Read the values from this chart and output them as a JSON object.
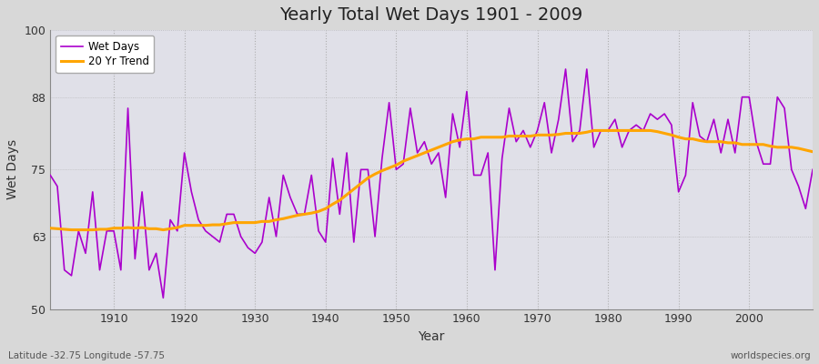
{
  "title": "Yearly Total Wet Days 1901 - 2009",
  "xlabel": "Year",
  "ylabel": "Wet Days",
  "subtitle_lat": "Latitude -32.75 Longitude -57.75",
  "watermark": "worldspecies.org",
  "ylim": [
    50,
    100
  ],
  "yticks": [
    50,
    63,
    75,
    88,
    100
  ],
  "xlim": [
    1901,
    2009
  ],
  "xticks": [
    1910,
    1920,
    1930,
    1940,
    1950,
    1960,
    1970,
    1980,
    1990,
    2000
  ],
  "line_color": "#AA00CC",
  "trend_color": "#FFA500",
  "fig_bg_color": "#D8D8D8",
  "plot_bg_color": "#E0E0E8",
  "years": [
    1901,
    1902,
    1903,
    1904,
    1905,
    1906,
    1907,
    1908,
    1909,
    1910,
    1911,
    1912,
    1913,
    1914,
    1915,
    1916,
    1917,
    1918,
    1919,
    1920,
    1921,
    1922,
    1923,
    1924,
    1925,
    1926,
    1927,
    1928,
    1929,
    1930,
    1931,
    1932,
    1933,
    1934,
    1935,
    1936,
    1937,
    1938,
    1939,
    1940,
    1941,
    1942,
    1943,
    1944,
    1945,
    1946,
    1947,
    1948,
    1949,
    1950,
    1951,
    1952,
    1953,
    1954,
    1955,
    1956,
    1957,
    1958,
    1959,
    1960,
    1961,
    1962,
    1963,
    1964,
    1965,
    1966,
    1967,
    1968,
    1969,
    1970,
    1971,
    1972,
    1973,
    1974,
    1975,
    1976,
    1977,
    1978,
    1979,
    1980,
    1981,
    1982,
    1983,
    1984,
    1985,
    1986,
    1987,
    1988,
    1989,
    1990,
    1991,
    1992,
    1993,
    1994,
    1995,
    1996,
    1997,
    1998,
    1999,
    2000,
    2001,
    2002,
    2003,
    2004,
    2005,
    2006,
    2007,
    2008,
    2009
  ],
  "wet_days": [
    74,
    72,
    57,
    56,
    64,
    60,
    71,
    57,
    64,
    64,
    57,
    86,
    59,
    71,
    57,
    60,
    52,
    66,
    64,
    78,
    71,
    66,
    64,
    63,
    62,
    67,
    67,
    63,
    61,
    60,
    62,
    70,
    63,
    74,
    70,
    67,
    67,
    74,
    64,
    62,
    77,
    67,
    78,
    62,
    75,
    75,
    63,
    77,
    87,
    75,
    76,
    86,
    78,
    80,
    76,
    78,
    70,
    85,
    79,
    89,
    74,
    74,
    78,
    57,
    77,
    86,
    80,
    82,
    79,
    82,
    87,
    78,
    84,
    93,
    80,
    82,
    93,
    79,
    82,
    82,
    84,
    79,
    82,
    83,
    82,
    85,
    84,
    85,
    83,
    71,
    74,
    87,
    81,
    80,
    84,
    78,
    84,
    78,
    88,
    88,
    80,
    76,
    76,
    88,
    86,
    75,
    72,
    68,
    75
  ],
  "trend": [
    64.5,
    64.4,
    64.3,
    64.2,
    64.2,
    64.2,
    64.2,
    64.3,
    64.3,
    64.5,
    64.5,
    64.6,
    64.5,
    64.6,
    64.4,
    64.4,
    64.2,
    64.4,
    64.6,
    65.0,
    65.0,
    65.0,
    65.0,
    65.1,
    65.1,
    65.3,
    65.5,
    65.5,
    65.5,
    65.5,
    65.7,
    65.7,
    66.0,
    66.2,
    66.5,
    66.8,
    67.0,
    67.2,
    67.5,
    68.0,
    68.8,
    69.5,
    70.5,
    71.5,
    72.5,
    73.5,
    74.2,
    74.8,
    75.3,
    75.8,
    76.5,
    77.0,
    77.5,
    78.0,
    78.5,
    79.0,
    79.5,
    80.0,
    80.3,
    80.5,
    80.5,
    80.8,
    80.8,
    80.8,
    80.8,
    81.0,
    81.0,
    81.0,
    81.0,
    81.2,
    81.2,
    81.2,
    81.3,
    81.5,
    81.5,
    81.5,
    81.7,
    82.0,
    82.0,
    82.0,
    82.0,
    82.0,
    82.0,
    82.0,
    82.0,
    82.0,
    81.8,
    81.5,
    81.2,
    80.8,
    80.5,
    80.5,
    80.2,
    80.0,
    80.0,
    80.0,
    79.8,
    79.8,
    79.5,
    79.5,
    79.5,
    79.5,
    79.2,
    79.0,
    79.0,
    79.0,
    78.8,
    78.5,
    78.2
  ]
}
